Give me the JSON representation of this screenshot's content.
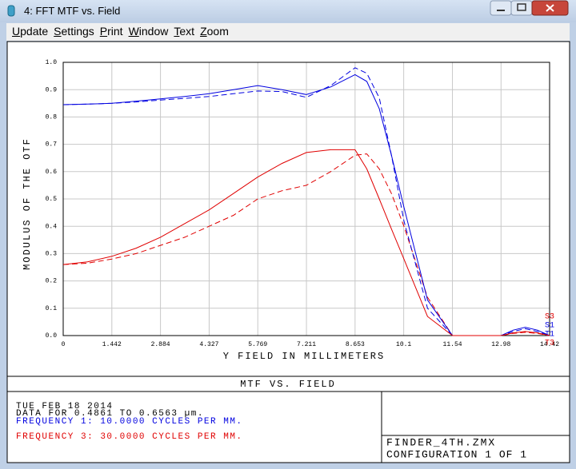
{
  "window": {
    "title": "4: FFT MTF vs. Field",
    "menu": [
      "Update",
      "Settings",
      "Print",
      "Window",
      "Text",
      "Zoom"
    ]
  },
  "chart_data": {
    "type": "line",
    "title": "MTF VS. FIELD",
    "x_label": "Y FIELD IN MILLIMETERS",
    "y_label": "MODULUS OF THE OTF",
    "x": [
      0,
      0.721,
      1.442,
      2.163,
      2.884,
      3.605,
      4.327,
      5.048,
      5.769,
      6.49,
      7.211,
      7.932,
      8.653,
      9.0,
      9.37,
      9.73,
      10.1,
      10.8,
      11.54,
      12.26,
      12.98,
      13.34,
      13.7,
      14.06,
      14.42
    ],
    "series": [
      {
        "name": "S3",
        "color": "#e00000",
        "style": "dashed",
        "values": [
          0.26,
          0.265,
          0.28,
          0.3,
          0.33,
          0.36,
          0.4,
          0.44,
          0.5,
          0.53,
          0.55,
          0.6,
          0.66,
          0.665,
          0.61,
          0.52,
          0.4,
          0.14,
          0,
          0,
          0,
          0.008,
          0.012,
          0.008,
          0
        ]
      },
      {
        "name": "S1",
        "color": "#0000e0",
        "style": "dashed",
        "values": [
          0.845,
          0.847,
          0.85,
          0.855,
          0.862,
          0.868,
          0.875,
          0.885,
          0.895,
          0.893,
          0.872,
          0.915,
          0.98,
          0.96,
          0.87,
          0.66,
          0.42,
          0.1,
          0,
          0,
          0,
          0.015,
          0.025,
          0.015,
          0
        ]
      },
      {
        "name": "T1",
        "color": "#0000e0",
        "style": "solid",
        "values": [
          0.845,
          0.847,
          0.85,
          0.858,
          0.866,
          0.875,
          0.885,
          0.9,
          0.915,
          0.9,
          0.882,
          0.91,
          0.955,
          0.93,
          0.83,
          0.66,
          0.47,
          0.13,
          0,
          0,
          0,
          0.02,
          0.03,
          0.02,
          0
        ]
      },
      {
        "name": "T3",
        "color": "#e00000",
        "style": "solid",
        "values": [
          0.26,
          0.27,
          0.29,
          0.32,
          0.36,
          0.41,
          0.46,
          0.52,
          0.58,
          0.63,
          0.67,
          0.68,
          0.68,
          0.61,
          0.5,
          0.39,
          0.28,
          0.07,
          0,
          0,
          0,
          0.01,
          0.015,
          0.01,
          0
        ]
      }
    ],
    "xlim": [
      0,
      14.42
    ],
    "xticks": [
      0,
      1.442,
      2.884,
      4.327,
      5.769,
      7.211,
      8.653,
      {
        "value": 10.095,
        "label": "10.1"
      },
      11.54,
      12.98,
      14.42
    ],
    "ylim": [
      0,
      1
    ],
    "yticks": [
      {
        "value": 0,
        "label": "0.0"
      },
      0.1,
      0.2,
      0.3,
      0.4,
      0.5,
      0.6,
      0.7,
      0.8,
      0.9,
      {
        "value": 1,
        "label": "1.0"
      }
    ],
    "grid": true
  },
  "footer": {
    "date": "TUE FEB 18 2014",
    "data_range": "DATA FOR 0.4861 TO 0.6563 µm.",
    "frequencies": [
      "FREQUENCY 1:  10.0000 CYCLES PER MM.",
      "FREQUENCY 3:  30.0000 CYCLES PER MM."
    ],
    "file": "FINDER_4TH.ZMX",
    "configuration": "CONFIGURATION 1 OF 1"
  }
}
